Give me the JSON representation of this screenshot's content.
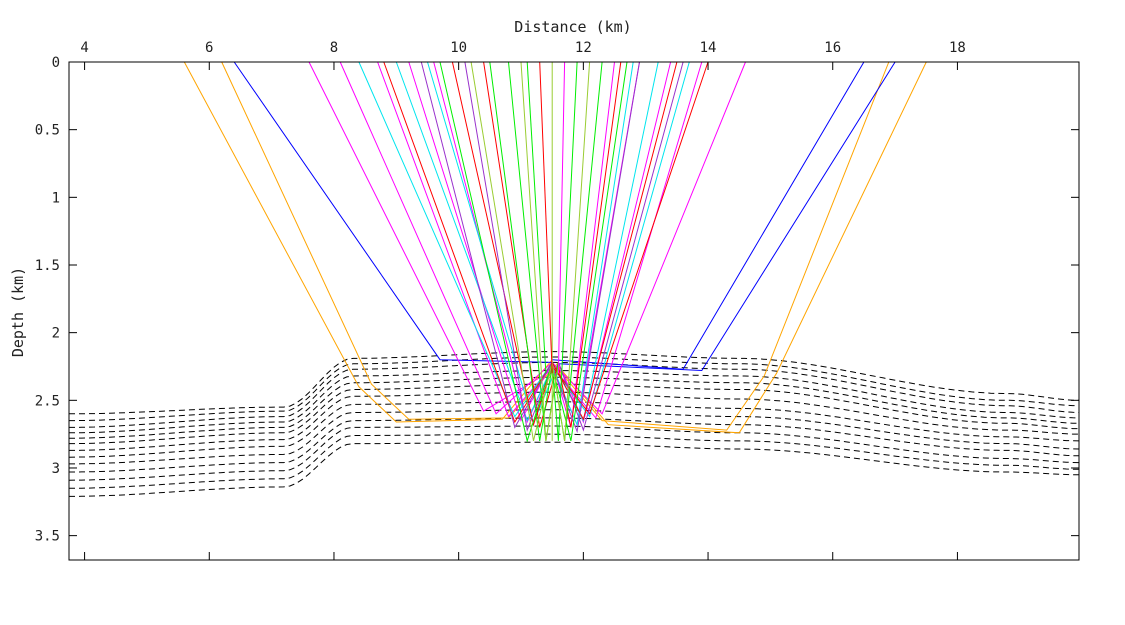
{
  "chart_data": {
    "type": "line",
    "xlabel": "Distance (km)",
    "ylabel": "Depth (km)",
    "xlim": [
      3.75,
      19.95
    ],
    "ylim": [
      0,
      3.68
    ],
    "y_inverted": true,
    "x_axis_position": "top",
    "grid": false,
    "legend": "none",
    "x_ticks": [
      4,
      6,
      8,
      10,
      12,
      14,
      16,
      18
    ],
    "x_tick_labels": [
      "4",
      "6",
      "8",
      "10",
      "12",
      "14",
      "16",
      "18"
    ],
    "y_ticks": [
      0,
      0.5,
      1,
      1.5,
      2,
      2.5,
      3,
      3.5
    ],
    "y_tick_labels": [
      "0",
      "0.5",
      "1",
      "1.5",
      "2",
      "2.5",
      "3",
      "3.5"
    ],
    "layer_style": {
      "color": "#000000",
      "dash": "dashed"
    },
    "layer_control_x": [
      3.75,
      7.2,
      8.3,
      11.5,
      14.5,
      18.8,
      19.95
    ],
    "layers": [
      [
        2.6,
        2.55,
        2.19,
        2.14,
        2.19,
        2.45,
        2.5
      ],
      [
        2.65,
        2.58,
        2.23,
        2.18,
        2.23,
        2.5,
        2.54
      ],
      [
        2.7,
        2.62,
        2.27,
        2.22,
        2.27,
        2.54,
        2.59
      ],
      [
        2.74,
        2.66,
        2.32,
        2.28,
        2.32,
        2.59,
        2.63
      ],
      [
        2.78,
        2.7,
        2.37,
        2.33,
        2.37,
        2.63,
        2.67
      ],
      [
        2.82,
        2.74,
        2.42,
        2.38,
        2.42,
        2.67,
        2.71
      ],
      [
        2.87,
        2.79,
        2.47,
        2.44,
        2.49,
        2.72,
        2.75
      ],
      [
        2.92,
        2.84,
        2.53,
        2.51,
        2.56,
        2.77,
        2.8
      ],
      [
        2.97,
        2.9,
        2.59,
        2.57,
        2.62,
        2.82,
        2.86
      ],
      [
        3.03,
        2.96,
        2.65,
        2.63,
        2.68,
        2.87,
        2.91
      ],
      [
        3.09,
        3.02,
        2.7,
        2.69,
        2.74,
        2.93,
        2.96
      ],
      [
        3.15,
        3.08,
        2.76,
        2.75,
        2.8,
        2.98,
        3.01
      ],
      [
        3.21,
        3.14,
        2.82,
        2.81,
        2.86,
        3.03,
        3.05
      ]
    ],
    "series": [
      {
        "color": "#ffa500",
        "points": [
          [
            5.6,
            0
          ],
          [
            8.4,
            2.4
          ],
          [
            9.0,
            2.66
          ],
          [
            10.7,
            2.64
          ],
          [
            11.5,
            2.2
          ]
        ]
      },
      {
        "color": "#ffa500",
        "points": [
          [
            6.2,
            0
          ],
          [
            8.6,
            2.38
          ],
          [
            9.2,
            2.64
          ],
          [
            10.8,
            2.63
          ],
          [
            11.6,
            2.22
          ]
        ]
      },
      {
        "color": "#ffa500",
        "points": [
          [
            17.5,
            0
          ],
          [
            15.1,
            2.3
          ],
          [
            14.5,
            2.74
          ],
          [
            12.4,
            2.68
          ],
          [
            11.6,
            2.25
          ]
        ]
      },
      {
        "color": "#ffa500",
        "points": [
          [
            16.9,
            0
          ],
          [
            14.9,
            2.32
          ],
          [
            14.3,
            2.72
          ],
          [
            12.3,
            2.65
          ],
          [
            11.5,
            2.22
          ]
        ]
      },
      {
        "color": "#0000ff",
        "points": [
          [
            6.4,
            0
          ],
          [
            9.7,
            2.2
          ],
          [
            11.5,
            2.22
          ]
        ]
      },
      {
        "color": "#0000ff",
        "points": [
          [
            16.5,
            0
          ],
          [
            13.6,
            2.27
          ],
          [
            11.5,
            2.2
          ]
        ]
      },
      {
        "color": "#0000ff",
        "points": [
          [
            17.0,
            0
          ],
          [
            13.9,
            2.28
          ],
          [
            11.6,
            2.23
          ]
        ]
      },
      {
        "color": "#ff00ff",
        "points": [
          [
            7.6,
            0
          ],
          [
            10.4,
            2.58
          ],
          [
            11.6,
            2.25
          ]
        ]
      },
      {
        "color": "#ff00ff",
        "points": [
          [
            8.1,
            0
          ],
          [
            10.6,
            2.6
          ],
          [
            11.5,
            2.22
          ]
        ]
      },
      {
        "color": "#ff00ff",
        "points": [
          [
            8.7,
            0
          ],
          [
            10.8,
            2.62
          ],
          [
            11.5,
            2.25
          ]
        ]
      },
      {
        "color": "#ff00ff",
        "points": [
          [
            9.2,
            0
          ],
          [
            11.0,
            2.65
          ],
          [
            11.5,
            2.22
          ]
        ]
      },
      {
        "color": "#ff00ff",
        "points": [
          [
            9.6,
            0
          ],
          [
            11.1,
            2.66
          ],
          [
            11.5,
            2.25
          ]
        ]
      },
      {
        "color": "#ff00ff",
        "points": [
          [
            14.6,
            0
          ],
          [
            12.3,
            2.6
          ],
          [
            11.5,
            2.22
          ]
        ]
      },
      {
        "color": "#ff00ff",
        "points": [
          [
            13.9,
            0
          ],
          [
            12.2,
            2.63
          ],
          [
            11.5,
            2.25
          ]
        ]
      },
      {
        "color": "#ff00ff",
        "points": [
          [
            13.4,
            0
          ],
          [
            12.0,
            2.66
          ],
          [
            11.6,
            2.22
          ]
        ]
      },
      {
        "color": "#ff00ff",
        "points": [
          [
            12.9,
            0
          ],
          [
            11.9,
            2.68
          ],
          [
            11.5,
            2.25
          ]
        ]
      },
      {
        "color": "#ff00ff",
        "points": [
          [
            12.5,
            0
          ],
          [
            11.8,
            2.7
          ],
          [
            11.5,
            2.22
          ]
        ]
      },
      {
        "color": "#00e5ee",
        "points": [
          [
            8.4,
            0
          ],
          [
            10.9,
            2.62
          ],
          [
            11.5,
            2.22
          ]
        ]
      },
      {
        "color": "#00e5ee",
        "points": [
          [
            9.0,
            0
          ],
          [
            11.1,
            2.65
          ],
          [
            11.5,
            2.25
          ]
        ]
      },
      {
        "color": "#00e5ee",
        "points": [
          [
            9.5,
            0
          ],
          [
            11.2,
            2.67
          ],
          [
            11.6,
            2.22
          ]
        ]
      },
      {
        "color": "#00e5ee",
        "points": [
          [
            13.7,
            0
          ],
          [
            12.1,
            2.62
          ],
          [
            11.5,
            2.25
          ]
        ]
      },
      {
        "color": "#00e5ee",
        "points": [
          [
            13.2,
            0
          ],
          [
            12.0,
            2.65
          ],
          [
            11.5,
            2.22
          ]
        ]
      },
      {
        "color": "#00e5ee",
        "points": [
          [
            12.8,
            0
          ],
          [
            11.9,
            2.68
          ],
          [
            11.5,
            2.25
          ]
        ]
      },
      {
        "color": "#ff0000",
        "points": [
          [
            8.8,
            0
          ],
          [
            10.9,
            2.66
          ],
          [
            11.5,
            2.22
          ]
        ]
      },
      {
        "color": "#ff0000",
        "points": [
          [
            9.9,
            0
          ],
          [
            11.2,
            2.68
          ],
          [
            11.5,
            2.25
          ]
        ]
      },
      {
        "color": "#ff0000",
        "points": [
          [
            10.4,
            0
          ],
          [
            11.3,
            2.7
          ],
          [
            11.6,
            2.22
          ]
        ]
      },
      {
        "color": "#ff0000",
        "points": [
          [
            14.0,
            0
          ],
          [
            12.1,
            2.6
          ],
          [
            11.5,
            2.25
          ]
        ]
      },
      {
        "color": "#ff0000",
        "points": [
          [
            13.5,
            0
          ],
          [
            12.0,
            2.64
          ],
          [
            11.5,
            2.22
          ]
        ]
      },
      {
        "color": "#ff0000",
        "points": [
          [
            12.6,
            0
          ],
          [
            11.8,
            2.7
          ],
          [
            11.6,
            2.25
          ]
        ]
      },
      {
        "color": "#9932cc",
        "points": [
          [
            9.4,
            0
          ],
          [
            10.9,
            2.7
          ],
          [
            11.5,
            2.22
          ]
        ]
      },
      {
        "color": "#9932cc",
        "points": [
          [
            10.1,
            0
          ],
          [
            11.1,
            2.72
          ],
          [
            11.5,
            2.25
          ]
        ]
      },
      {
        "color": "#9932cc",
        "points": [
          [
            13.6,
            0
          ],
          [
            12.0,
            2.72
          ],
          [
            11.6,
            2.22
          ]
        ]
      },
      {
        "color": "#9932cc",
        "points": [
          [
            12.9,
            0
          ],
          [
            11.9,
            2.73
          ],
          [
            11.5,
            2.25
          ]
        ]
      },
      {
        "color": "#00ee00",
        "points": [
          [
            9.7,
            0
          ],
          [
            11.1,
            2.8
          ],
          [
            11.5,
            2.22
          ]
        ]
      },
      {
        "color": "#00ee00",
        "points": [
          [
            10.5,
            0
          ],
          [
            11.3,
            2.8
          ],
          [
            11.5,
            2.25
          ]
        ]
      },
      {
        "color": "#00ee00",
        "points": [
          [
            10.8,
            0
          ],
          [
            11.4,
            2.8
          ],
          [
            11.6,
            2.22
          ]
        ]
      },
      {
        "color": "#00ee00",
        "points": [
          [
            12.7,
            0
          ],
          [
            11.8,
            2.8
          ],
          [
            11.5,
            2.25
          ]
        ]
      },
      {
        "color": "#00ee00",
        "points": [
          [
            12.3,
            0
          ],
          [
            11.7,
            2.8
          ],
          [
            11.5,
            2.22
          ]
        ]
      },
      {
        "color": "#00ee00",
        "points": [
          [
            11.9,
            0
          ],
          [
            11.6,
            2.8
          ],
          [
            11.5,
            2.25
          ]
        ]
      },
      {
        "color": "#9acd32",
        "points": [
          [
            10.2,
            0
          ],
          [
            11.2,
            2.8
          ],
          [
            11.5,
            2.22
          ]
        ]
      },
      {
        "color": "#9acd32",
        "points": [
          [
            11.0,
            0
          ],
          [
            11.4,
            2.8
          ],
          [
            11.6,
            2.25
          ]
        ]
      },
      {
        "color": "#9acd32",
        "points": [
          [
            12.1,
            0
          ],
          [
            11.7,
            2.8
          ],
          [
            11.5,
            2.22
          ]
        ]
      },
      {
        "color": "#9acd32",
        "points": [
          [
            11.5,
            0
          ],
          [
            11.5,
            2.8
          ],
          [
            11.5,
            2.25
          ]
        ]
      },
      {
        "color": "#ff0000",
        "points": [
          [
            11.3,
            0
          ],
          [
            11.5,
            2.3
          ]
        ]
      },
      {
        "color": "#ff00ff",
        "points": [
          [
            11.7,
            0
          ],
          [
            11.6,
            2.3
          ]
        ]
      },
      {
        "color": "#00ee00",
        "points": [
          [
            11.1,
            0
          ],
          [
            11.4,
            2.3
          ]
        ]
      }
    ]
  }
}
